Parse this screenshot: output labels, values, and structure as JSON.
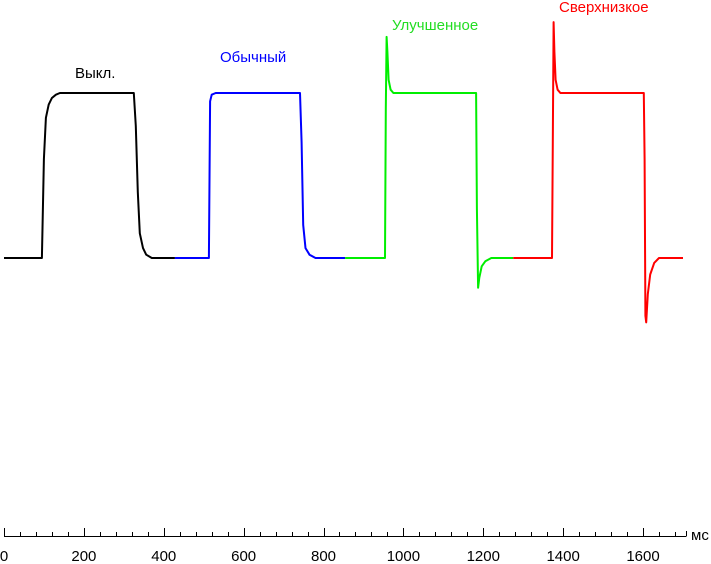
{
  "chart_data": {
    "type": "line",
    "title": "",
    "xlabel": "мс",
    "ylabel": "",
    "xlim": [
      0,
      1710
    ],
    "ylim": [
      -60,
      160
    ],
    "grid": false,
    "x_ticks": [
      0,
      200,
      400,
      600,
      800,
      1000,
      1200,
      1400,
      1600
    ],
    "x_tick_labels": [
      "0",
      "200",
      "400",
      "600",
      "800",
      "1000",
      "1200",
      "1400",
      "1600"
    ],
    "minor_tick_step": 40,
    "series": [
      {
        "name": "Выкл.",
        "color": "#000000",
        "x": [
          0,
          95,
          100,
          105,
          112,
          120,
          130,
          140,
          325,
          330,
          335,
          340,
          348,
          356,
          370,
          428
        ],
        "y": [
          0,
          0,
          60,
          85,
          93,
          97,
          99,
          100,
          100,
          80,
          40,
          15,
          6,
          2,
          0,
          0
        ]
      },
      {
        "name": "Обычный",
        "color": "#0000ff",
        "x": [
          428,
          513,
          516,
          520,
          530,
          741,
          745,
          749,
          755,
          765,
          780,
          854
        ],
        "y": [
          0,
          0,
          95,
          99,
          100,
          100,
          70,
          20,
          6,
          2,
          0,
          0
        ]
      },
      {
        "name": "Улучшенное",
        "color": "#00ee00",
        "x": [
          854,
          954,
          956,
          958,
          960,
          963,
          968,
          975,
          1182,
          1184,
          1187,
          1190,
          1196,
          1205,
          1220,
          1275
        ],
        "y": [
          0,
          0,
          90,
          134,
          125,
          108,
          102,
          100,
          100,
          30,
          -18,
          -12,
          -5,
          -2,
          0,
          0
        ]
      },
      {
        "name": "Сверхнизкое",
        "color": "#ff0000",
        "x": [
          1275,
          1372,
          1374,
          1376,
          1378,
          1381,
          1386,
          1393,
          1602,
          1604,
          1606,
          1608,
          1612,
          1618,
          1628,
          1640,
          1700
        ],
        "y": [
          0,
          0,
          70,
          143,
          125,
          108,
          102,
          100,
          100,
          60,
          -35,
          -39,
          -22,
          -10,
          -3,
          0,
          0
        ]
      }
    ]
  }
}
